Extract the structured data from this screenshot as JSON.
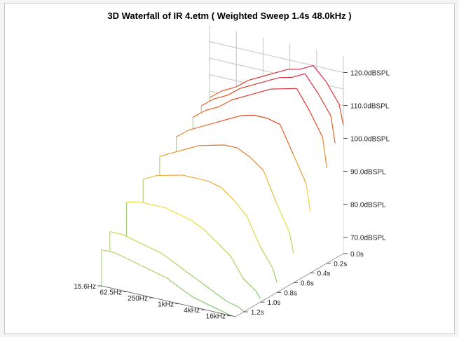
{
  "chart_data": {
    "type": "area",
    "title": "3D Waterfall of IR 4.etm ( Weighted Sweep 1.4s 48.0kHz )",
    "x_tick_labels": [
      "15.6Hz",
      "62.5Hz",
      "250Hz",
      "1kHz",
      "4kHz",
      "16kHz"
    ],
    "y_tick_labels": [
      "70.0dBSPL",
      "80.0dBSPL",
      "90.0dBSPL",
      "100.0dBSPL",
      "110.0dBSPL",
      "120.0dBSPL"
    ],
    "z_tick_labels": [
      "0.0s",
      "0.2s",
      "0.4s",
      "0.6s",
      "0.8s",
      "1.0s",
      "1.2s"
    ],
    "x_range_hz": [
      15.6,
      20000
    ],
    "y_range_db": [
      65,
      125
    ],
    "z_range_s": [
      0,
      1.3
    ],
    "grid": true,
    "colors": {
      "low": "#7cc576",
      "mid": "#f0e040",
      "high": "#d22020",
      "peak": "#d01868"
    },
    "series": [
      {
        "time_s": 0.0,
        "x_hz": [
          15.6,
          31,
          62.5,
          125,
          250,
          500,
          1000,
          2000,
          4000,
          8000,
          16000,
          20000
        ],
        "y_db": [
          103,
          106,
          108,
          111,
          113,
          115,
          117,
          118,
          120,
          116,
          110,
          104
        ]
      },
      {
        "time_s": 0.1,
        "x_hz": [
          15.6,
          31,
          62.5,
          125,
          250,
          500,
          1000,
          2000,
          4000,
          8000,
          16000,
          20000
        ],
        "y_db": [
          102,
          105,
          107,
          110,
          112,
          114,
          116,
          117,
          119,
          114,
          108,
          100
        ]
      },
      {
        "time_s": 0.2,
        "x_hz": [
          15.6,
          31,
          62.5,
          125,
          250,
          500,
          1000,
          2000,
          4000,
          8000,
          16000,
          20000
        ],
        "y_db": [
          100,
          103,
          105,
          108,
          110,
          112,
          114,
          115,
          116,
          110,
          103,
          94
        ]
      },
      {
        "time_s": 0.4,
        "x_hz": [
          15.6,
          31,
          62.5,
          125,
          250,
          500,
          1000,
          2000,
          4000,
          8000,
          16000,
          20000
        ],
        "y_db": [
          97,
          100,
          102,
          104,
          106,
          108,
          109,
          109,
          108,
          100,
          92,
          84
        ]
      },
      {
        "time_s": 0.6,
        "x_hz": [
          15.6,
          31,
          62.5,
          125,
          250,
          500,
          1000,
          2000,
          4000,
          8000,
          16000,
          20000
        ],
        "y_db": [
          94,
          96,
          98,
          100,
          101,
          102,
          102,
          100,
          97,
          88,
          80,
          74
        ]
      },
      {
        "time_s": 0.8,
        "x_hz": [
          15.6,
          31,
          62.5,
          125,
          250,
          500,
          1000,
          2000,
          4000,
          8000,
          16000,
          20000
        ],
        "y_db": [
          90,
          92,
          93,
          94,
          94,
          94,
          93,
          90,
          86,
          78,
          72,
          68
        ]
      },
      {
        "time_s": 1.0,
        "x_hz": [
          15.6,
          31,
          62.5,
          125,
          250,
          500,
          1000,
          2000,
          4000,
          8000,
          16000,
          20000
        ],
        "y_db": [
          86,
          87,
          87,
          87,
          86,
          85,
          83,
          80,
          77,
          71,
          68,
          66
        ]
      },
      {
        "time_s": 1.2,
        "x_hz": [
          15.6,
          31,
          62.5,
          125,
          250,
          500,
          1000,
          2000,
          4000,
          8000,
          16000,
          20000
        ],
        "y_db": [
          80,
          80,
          79,
          78,
          77,
          75,
          73,
          71,
          69,
          67,
          66,
          65
        ]
      },
      {
        "time_s": 1.3,
        "x_hz": [
          15.6,
          31,
          62.5,
          125,
          250,
          500,
          1000,
          2000,
          4000,
          8000,
          16000,
          20000
        ],
        "y_db": [
          76,
          76,
          75,
          74,
          73,
          72,
          70,
          68,
          67,
          66,
          65,
          65
        ]
      }
    ]
  }
}
